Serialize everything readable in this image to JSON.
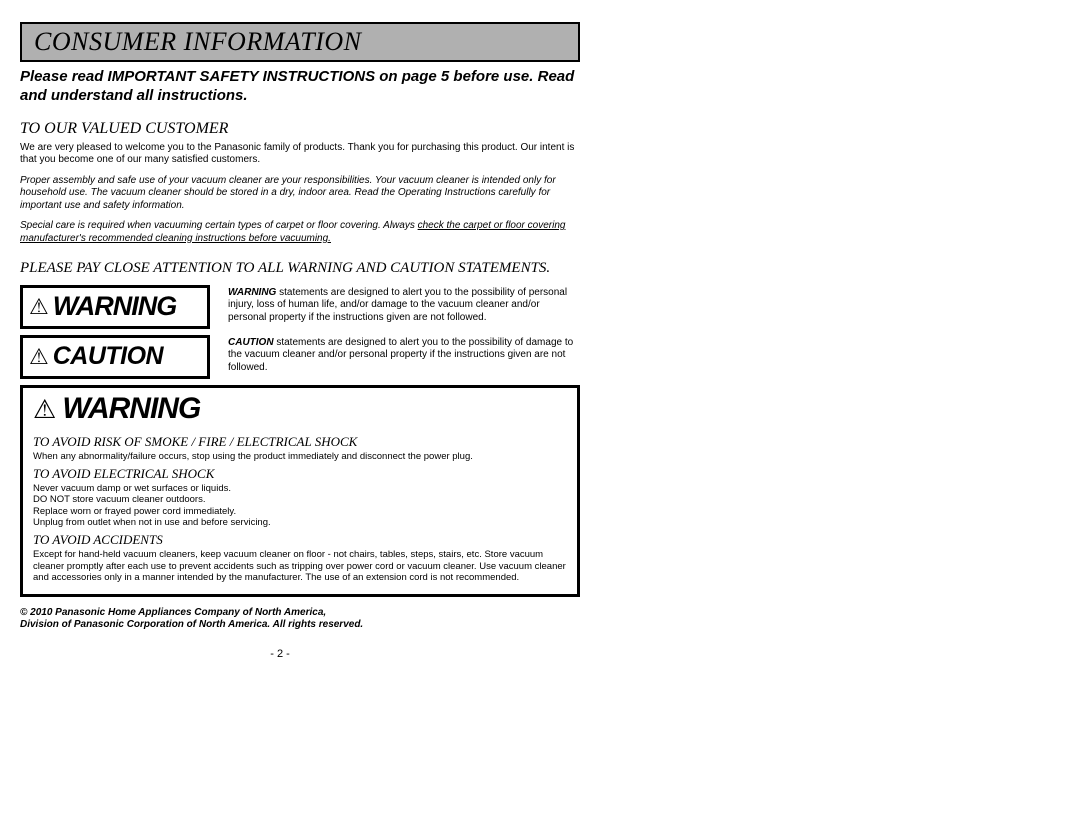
{
  "section_title": "CONSUMER INFORMATION",
  "intro": "Please read IMPORTANT SAFETY INSTRUCTIONS on page 5 before use. Read and understand all instructions.",
  "valued_heading": "TO OUR VALUED CUSTOMER",
  "valued_p1": "We are very pleased to welcome you to the Panasonic family of products. Thank you for purchasing this product. Our intent is that you become one of our many satisfied customers.",
  "valued_p2": "Proper assembly and safe use of your vacuum cleaner are your responsibilities. Your vacuum cleaner is intended only for household use. The vacuum cleaner should be stored in a dry, indoor area. Read the Operating Instructions carefully for important use and safety information.",
  "valued_p3a": "Special care is required when vacuuming certain types of carpet or floor covering. Always ",
  "valued_p3b": "check the carpet or floor covering manufacturer's recommended cleaning instructions before vacuuming.",
  "attention": "PLEASE PAY CLOSE ATTENTION TO ALL WARNING AND CAUTION STATEMENTS.",
  "warning_label": "WARNING",
  "caution_label": "CAUTION",
  "warning_desc_lead": "WARNING",
  "warning_desc": " statements are designed to alert you to the possibility of personal injury, loss of human life, and/or damage to the vacuum cleaner and/or personal property if the instructions given are not followed.",
  "caution_desc_lead": "CAUTION",
  "caution_desc": " statements are designed to alert you to the possibility of damage to the vacuum cleaner and/or personal property if the instructions given are not followed.",
  "box": {
    "h1": "TO AVOID RISK OF SMOKE / FIRE / ELECTRICAL SHOCK",
    "p1": "When any abnormality/failure occurs, stop using the product immediately and disconnect the power plug.",
    "h2": "TO AVOID ELECTRICAL SHOCK",
    "p2": "Never vacuum damp or wet surfaces or liquids.\nDO NOT store vacuum cleaner outdoors.\nReplace worn or frayed power cord immediately.\nUnplug from outlet when not in use and before servicing.",
    "h3": "TO AVOID ACCIDENTS",
    "p3": "Except for hand-held vacuum cleaners, keep vacuum cleaner on floor - not chairs, tables, steps, stairs, etc. Store vacuum cleaner promptly after each use to prevent accidents such as tripping over power cord or vacuum cleaner. Use vacuum cleaner and accessories only in a manner intended by the manufacturer. The use of an extension cord is not recommended."
  },
  "copyright": "© 2010 Panasonic Home Appliances Company of North America,\nDivision of Panasonic Corporation of North America.  All rights reserved.",
  "page_number": "- 2 -"
}
